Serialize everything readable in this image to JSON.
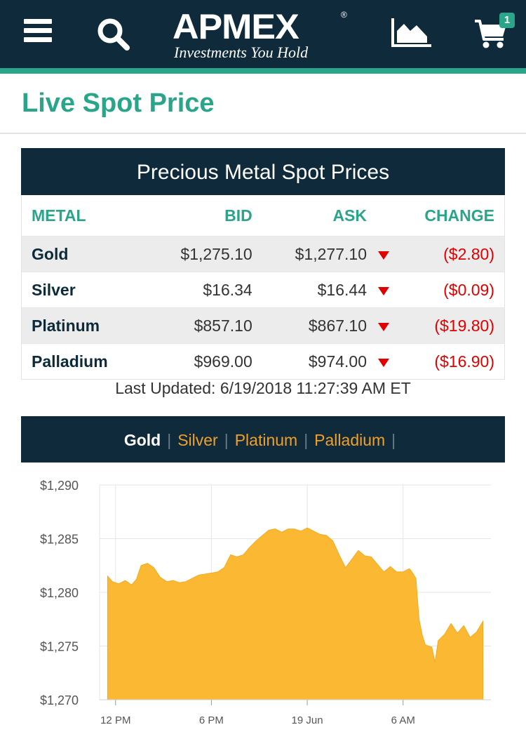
{
  "header": {
    "logo_text": "APMEX",
    "logo_tagline": "Investments You Hold",
    "logo_registered": "®",
    "icons": [
      "menu-icon",
      "search-icon",
      "chart-icon",
      "cart-icon"
    ],
    "cart_count": "1"
  },
  "page": {
    "title": "Live Spot Price"
  },
  "spot_table": {
    "title": "Precious Metal Spot Prices",
    "columns": [
      "METAL",
      "BID",
      "ASK",
      "CHANGE"
    ],
    "rows": [
      {
        "metal": "Gold",
        "bid": "$1,275.10",
        "ask": "$1,277.10",
        "change": "($2.80)",
        "direction": "down"
      },
      {
        "metal": "Silver",
        "bid": "$16.34",
        "ask": "$16.44",
        "change": "($0.09)",
        "direction": "down"
      },
      {
        "metal": "Platinum",
        "bid": "$857.10",
        "ask": "$867.10",
        "change": "($19.80)",
        "direction": "down"
      },
      {
        "metal": "Palladium",
        "bid": "$969.00",
        "ask": "$974.00",
        "change": "($16.90)",
        "direction": "down"
      }
    ],
    "last_updated": "Last Updated: 6/19/2018 11:27:39 AM ET"
  },
  "chart_tabs": {
    "tabs": [
      "Gold",
      "Silver",
      "Platinum",
      "Palladium"
    ],
    "active": "Gold",
    "separator": "|"
  },
  "colors": {
    "header_bg": "#0f2a3b",
    "accent_green": "#2aa58a",
    "area_fill": "#fbb933",
    "negative_red": "#e00000",
    "tab_orange": "#f0a028"
  },
  "chart_data": {
    "type": "area",
    "title": "",
    "xlabel": "",
    "ylabel": "",
    "ylim": [
      1270,
      1290
    ],
    "y_ticks": [
      "$1,270",
      "$1,275",
      "$1,280",
      "$1,285",
      "$1,290"
    ],
    "y_tick_values": [
      1270,
      1275,
      1280,
      1285,
      1290
    ],
    "x_ticks": [
      "12 PM",
      "6 PM",
      "19 Jun",
      "6 AM"
    ],
    "x_tick_hours": [
      1,
      7,
      13,
      19
    ],
    "grid": true,
    "legend": "none",
    "series": [
      {
        "color": "#fbb933",
        "x": [
          0.5,
          0.8,
          1.2,
          1.6,
          2.0,
          2.3,
          2.6,
          3.0,
          3.4,
          3.8,
          4.2,
          4.6,
          5.0,
          5.4,
          5.8,
          6.2,
          6.6,
          7.0,
          7.4,
          7.8,
          8.2,
          8.6,
          9.0,
          9.4,
          9.8,
          10.2,
          10.6,
          11.0,
          11.4,
          11.8,
          12.2,
          12.6,
          13.0,
          13.4,
          13.8,
          14.2,
          14.6,
          15.0,
          15.4,
          15.8,
          16.2,
          16.6,
          17.0,
          17.4,
          17.8,
          18.2,
          18.6,
          19.0,
          19.4,
          19.6,
          19.8,
          20.0,
          20.2,
          20.4,
          20.8,
          21.0,
          21.2,
          21.6,
          22.0,
          22.4,
          22.8,
          23.2,
          23.6,
          24.0
        ],
        "values": [
          1281.5,
          1281.0,
          1280.8,
          1281.1,
          1280.7,
          1281.2,
          1282.5,
          1282.7,
          1282.3,
          1281.4,
          1281.0,
          1281.1,
          1280.9,
          1281.0,
          1281.3,
          1281.6,
          1281.7,
          1281.8,
          1281.9,
          1282.3,
          1283.5,
          1283.3,
          1283.5,
          1284.2,
          1284.8,
          1285.3,
          1285.8,
          1285.9,
          1285.6,
          1285.9,
          1285.9,
          1285.7,
          1286.0,
          1285.7,
          1285.4,
          1285.3,
          1284.8,
          1283.5,
          1282.3,
          1283.1,
          1283.9,
          1283.4,
          1283.3,
          1282.6,
          1281.9,
          1282.4,
          1281.9,
          1281.9,
          1282.2,
          1281.8,
          1281.3,
          1277.5,
          1276.0,
          1275.1,
          1274.9,
          1273.5,
          1275.5,
          1276.1,
          1277.1,
          1276.2,
          1276.9,
          1275.8,
          1276.3,
          1277.3
        ]
      }
    ]
  }
}
